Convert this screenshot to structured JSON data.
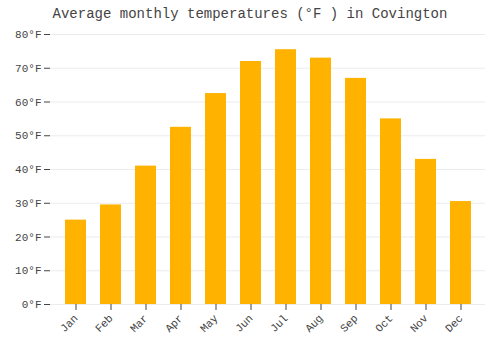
{
  "chart_data": {
    "type": "bar",
    "title": "Average monthly temperatures (°F ) in Covington",
    "categories": [
      "Jan",
      "Feb",
      "Mar",
      "Apr",
      "May",
      "Jun",
      "Jul",
      "Aug",
      "Sep",
      "Oct",
      "Nov",
      "Dec"
    ],
    "values": [
      25,
      29.5,
      41,
      52.5,
      62.5,
      72,
      75.5,
      73,
      67,
      55,
      43,
      30.5
    ],
    "color": "#FFB300",
    "ylim": [
      0,
      80
    ],
    "yticks": [
      {
        "value": 0,
        "label": "0°F"
      },
      {
        "value": 10,
        "label": "10°F"
      },
      {
        "value": 20,
        "label": "20°F"
      },
      {
        "value": 30,
        "label": "30°F"
      },
      {
        "value": 40,
        "label": "40°F"
      },
      {
        "value": 50,
        "label": "50°F"
      },
      {
        "value": 60,
        "label": "60°F"
      },
      {
        "value": 70,
        "label": "70°F"
      },
      {
        "value": 80,
        "label": "80°F"
      }
    ],
    "grid": true
  }
}
